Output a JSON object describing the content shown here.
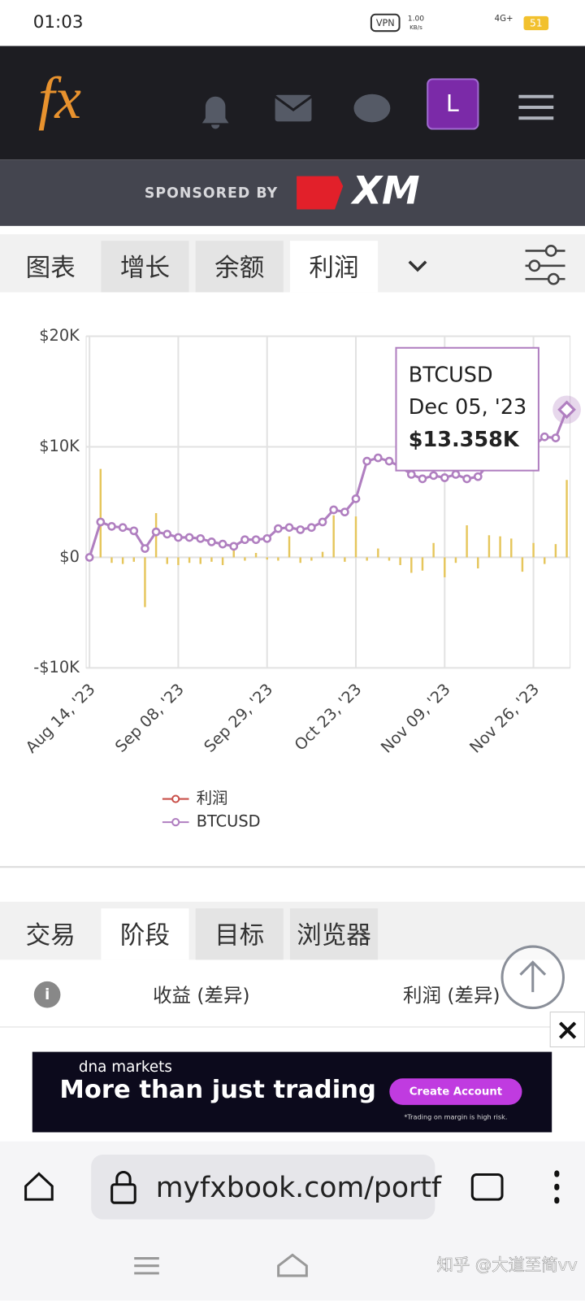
{
  "status_bar": {
    "time": "01:03",
    "vpn": "VPN",
    "speed": "1.00",
    "speed_unit": "KB/s",
    "network": "4G+",
    "battery": "51"
  },
  "header": {
    "logo": "fx",
    "avatar": "L"
  },
  "sponsor": {
    "label": "SPONSORED BY",
    "brand": "XM"
  },
  "tabs": [
    "图表",
    "增长",
    "余额",
    "利润"
  ],
  "active_tab": 3,
  "chart_data": {
    "type": "combo",
    "categories": [
      "Aug 14, '23",
      null,
      null,
      null,
      null,
      null,
      null,
      null,
      "Sep 08, '23",
      null,
      null,
      null,
      null,
      null,
      null,
      null,
      "Sep 29, '23",
      null,
      null,
      null,
      null,
      null,
      null,
      null,
      "Oct 23, '23",
      null,
      null,
      null,
      null,
      null,
      null,
      null,
      "Nov 09, '23",
      null,
      null,
      null,
      null,
      null,
      null,
      null,
      "Nov 26, '23",
      null,
      null,
      "Dec 05, '23"
    ],
    "series": [
      {
        "name": "利润",
        "type": "bar",
        "color": "#c9504a",
        "bar_color": "#e6c65c",
        "values": [
          0,
          8000,
          -500,
          -600,
          -400,
          -4500,
          4000,
          -600,
          -700,
          -500,
          -600,
          -400,
          -700,
          800,
          -300,
          400,
          -200,
          -300,
          1900,
          -500,
          -300,
          500,
          3800,
          -400,
          3700,
          -300,
          800,
          -300,
          -700,
          -1400,
          -1200,
          1300,
          -1800,
          -500,
          2900,
          -1000,
          2000,
          1900,
          1700,
          -1300,
          1300,
          -600,
          1200,
          7000
        ]
      },
      {
        "name": "BTCUSD",
        "type": "line",
        "color": "#b07fc0",
        "values": [
          0,
          3200,
          2800,
          2700,
          2400,
          800,
          2300,
          2100,
          1800,
          1800,
          1700,
          1400,
          1200,
          1000,
          1600,
          1600,
          1700,
          2600,
          2700,
          2500,
          2700,
          3200,
          4300,
          4100,
          5300,
          8700,
          9000,
          8700,
          8200,
          7500,
          7100,
          7400,
          7200,
          7500,
          7100,
          7300,
          8500,
          9500,
          10000,
          10200,
          10100,
          10900,
          10800,
          13358
        ]
      }
    ],
    "ylim": [
      -10000,
      20000
    ],
    "yticks": [
      {
        "value": -10000,
        "label": "-$10K"
      },
      {
        "value": 0,
        "label": "$0"
      },
      {
        "value": 10000,
        "label": "$10K"
      },
      {
        "value": 20000,
        "label": "$20K"
      }
    ],
    "grid": true,
    "tooltip": {
      "index": 43,
      "series": 1,
      "value_label": "$13.358K"
    }
  },
  "bottom_tabs": [
    "交易",
    "阶段",
    "目标",
    "浏览器"
  ],
  "active_bottom_tab": 1,
  "table_header": [
    "收益 (差异)",
    "利润 (差异)"
  ],
  "ad": {
    "brand": "dna markets",
    "headline": "More than just trading",
    "button": "Create Account",
    "disclaimer": "*Trading on margin is high risk."
  },
  "browser": {
    "url": "myfxbook.com/portf"
  },
  "watermark": "知乎 @大道至简vv"
}
